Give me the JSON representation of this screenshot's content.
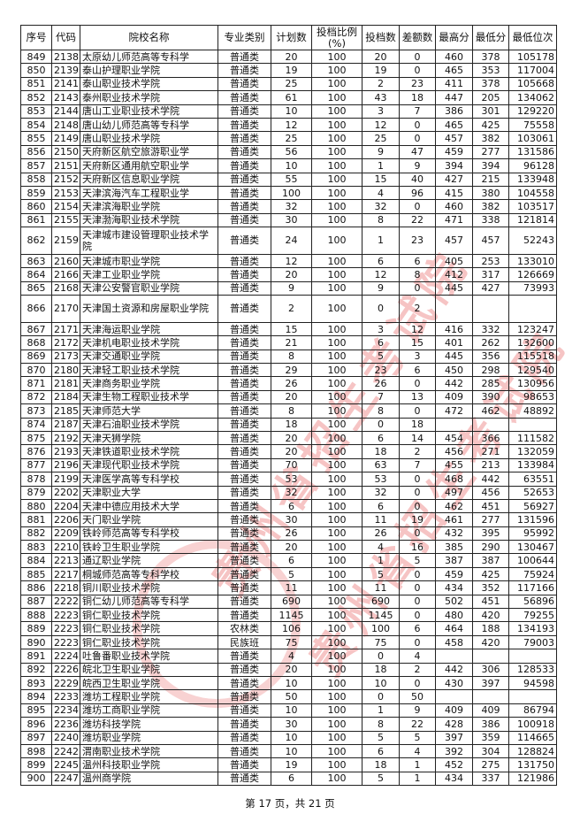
{
  "header": {
    "columns": [
      "序号",
      "代码",
      "院校名称",
      "专业类别",
      "计划数",
      "投档比例(%)",
      "投档数",
      "差额数",
      "最高分",
      "最低分",
      "最低位次"
    ]
  },
  "rows": [
    [
      "849",
      "2138",
      "太原幼儿师范高等专科学",
      "普通类",
      "20",
      "100",
      "20",
      "0",
      "460",
      "378",
      "105178"
    ],
    [
      "850",
      "2139",
      "泰山护理职业学院",
      "普通类",
      "19",
      "100",
      "19",
      "0",
      "465",
      "353",
      "117004"
    ],
    [
      "851",
      "2141",
      "泰山职业技术学院",
      "普通类",
      "25",
      "100",
      "2",
      "23",
      "411",
      "378",
      "105668"
    ],
    [
      "852",
      "2143",
      "泰州职业技术学院",
      "普通类",
      "61",
      "100",
      "43",
      "18",
      "447",
      "205",
      "134062"
    ],
    [
      "853",
      "2144",
      "唐山工业职业技术学院",
      "普通类",
      "10",
      "100",
      "3",
      "7",
      "386",
      "301",
      "129220"
    ],
    [
      "854",
      "2148",
      "唐山幼儿师范高等专科学",
      "普通类",
      "12",
      "100",
      "12",
      "0",
      "465",
      "425",
      "75558"
    ],
    [
      "855",
      "2149",
      "唐山职业技术学院",
      "普通类",
      "25",
      "100",
      "25",
      "0",
      "457",
      "382",
      "103061"
    ],
    [
      "856",
      "2150",
      "天府新区航空旅游职业学",
      "普通类",
      "56",
      "100",
      "9",
      "47",
      "459",
      "277",
      "131586"
    ],
    [
      "857",
      "2151",
      "天府新区通用航空职业学",
      "普通类",
      "10",
      "100",
      "1",
      "9",
      "394",
      "394",
      "96128"
    ],
    [
      "858",
      "2152",
      "天府新区信息职业学院",
      "普通类",
      "55",
      "100",
      "15",
      "40",
      "427",
      "215",
      "133948"
    ],
    [
      "859",
      "2153",
      "天津滨海汽车工程职业学",
      "普通类",
      "100",
      "100",
      "4",
      "96",
      "415",
      "380",
      "104558"
    ],
    [
      "860",
      "2154",
      "天津滨海职业学院",
      "普通类",
      "32",
      "100",
      "32",
      "0",
      "460",
      "382",
      "103517"
    ],
    [
      "861",
      "2155",
      "天津渤海职业技术学院",
      "普通类",
      "30",
      "100",
      "8",
      "22",
      "471",
      "338",
      "121814"
    ],
    [
      "862",
      "2159",
      "天津城市建设管理职业技术学院",
      "普通类",
      "24",
      "100",
      "1",
      "23",
      "457",
      "457",
      "52243"
    ],
    [
      "863",
      "2160",
      "天津城市职业学院",
      "普通类",
      "12",
      "100",
      "6",
      "6",
      "405",
      "253",
      "133010"
    ],
    [
      "864",
      "2166",
      "天津工业职业学院",
      "普通类",
      "20",
      "100",
      "12",
      "8",
      "412",
      "317",
      "126669"
    ],
    [
      "865",
      "2168",
      "天津公安警官职业学院",
      "普通类",
      "9",
      "100",
      "9",
      "0",
      "445",
      "427",
      "73993"
    ],
    [
      "866",
      "2170",
      "天津国土资源和房屋职业学院",
      "普通类",
      "2",
      "100",
      "0",
      "2",
      "",
      "",
      ""
    ],
    [
      "867",
      "2171",
      "天津海运职业学院",
      "普通类",
      "15",
      "100",
      "3",
      "12",
      "416",
      "332",
      "123247"
    ],
    [
      "868",
      "2172",
      "天津机电职业技术学院",
      "普通类",
      "21",
      "100",
      "6",
      "15",
      "401",
      "262",
      "132600"
    ],
    [
      "869",
      "2173",
      "天津交通职业学院",
      "普通类",
      "8",
      "100",
      "5",
      "3",
      "445",
      "356",
      "115518"
    ],
    [
      "870",
      "2180",
      "天津轻工职业技术学院",
      "普通类",
      "29",
      "100",
      "23",
      "6",
      "450",
      "298",
      "129540"
    ],
    [
      "871",
      "2181",
      "天津商务职业学院",
      "普通类",
      "26",
      "100",
      "26",
      "0",
      "442",
      "285",
      "130956"
    ],
    [
      "872",
      "2184",
      "天津生物工程职业技术学",
      "普通类",
      "20",
      "100",
      "7",
      "13",
      "409",
      "390",
      "98653"
    ],
    [
      "873",
      "2185",
      "天津师范大学",
      "普通类",
      "8",
      "100",
      "8",
      "0",
      "472",
      "462",
      "48892"
    ],
    [
      "874",
      "2187",
      "天津石油职业技术学院",
      "普通类",
      "18",
      "100",
      "0",
      "18",
      "",
      "",
      ""
    ],
    [
      "875",
      "2192",
      "天津天狮学院",
      "普通类",
      "20",
      "100",
      "6",
      "14",
      "454",
      "366",
      "111582"
    ],
    [
      "876",
      "2193",
      "天津铁道职业技术学院",
      "普通类",
      "20",
      "100",
      "18",
      "2",
      "456",
      "271",
      "132059"
    ],
    [
      "877",
      "2196",
      "天津现代职业技术学院",
      "普通类",
      "70",
      "100",
      "63",
      "7",
      "455",
      "213",
      "133984"
    ],
    [
      "878",
      "2199",
      "天津医学高等专科学校",
      "普通类",
      "53",
      "100",
      "53",
      "0",
      "468",
      "442",
      "63551"
    ],
    [
      "879",
      "2202",
      "天津职业大学",
      "普通类",
      "32",
      "100",
      "32",
      "0",
      "497",
      "456",
      "52653"
    ],
    [
      "880",
      "2204",
      "天津中德应用技术大学",
      "普通类",
      "6",
      "100",
      "6",
      "0",
      "462",
      "451",
      "56927"
    ],
    [
      "881",
      "2206",
      "天门职业学院",
      "普通类",
      "30",
      "100",
      "11",
      "19",
      "461",
      "277",
      "131596"
    ],
    [
      "882",
      "2209",
      "铁岭师范高等专科学校",
      "普通类",
      "26",
      "100",
      "26",
      "0",
      "432",
      "395",
      "95992"
    ],
    [
      "883",
      "2210",
      "铁岭卫生职业学院",
      "普通类",
      "20",
      "100",
      "4",
      "16",
      "385",
      "290",
      "130467"
    ],
    [
      "884",
      "2213",
      "通辽职业学院",
      "普通类",
      "6",
      "100",
      "1",
      "5",
      "387",
      "387",
      "100644"
    ],
    [
      "885",
      "2217",
      "桐城师范高等专科学校",
      "普通类",
      "5",
      "100",
      "5",
      "0",
      "459",
      "425",
      "75924"
    ],
    [
      "886",
      "2218",
      "铜川职业技术学院",
      "普通类",
      "11",
      "100",
      "11",
      "0",
      "434",
      "352",
      "117166"
    ],
    [
      "887",
      "2222",
      "铜仁幼儿师范高等专科学",
      "普通类",
      "690",
      "100",
      "690",
      "0",
      "502",
      "451",
      "56896"
    ],
    [
      "888",
      "2223",
      "铜仁职业技术学院",
      "普通类",
      "1145",
      "100",
      "1145",
      "0",
      "480",
      "420",
      "79255"
    ],
    [
      "889",
      "2223",
      "铜仁职业技术学院",
      "农林类",
      "106",
      "100",
      "100",
      "6",
      "464",
      "188",
      "134193"
    ],
    [
      "890",
      "2223",
      "铜仁职业技术学院",
      "民族班",
      "75",
      "100",
      "75",
      "0",
      "458",
      "420",
      "79003"
    ],
    [
      "891",
      "2224",
      "吐鲁番职业技术学院",
      "普通类",
      "4",
      "100",
      "0",
      "4",
      "",
      "",
      ""
    ],
    [
      "892",
      "2226",
      "皖北卫生职业学院",
      "普通类",
      "20",
      "100",
      "18",
      "2",
      "442",
      "306",
      "128533"
    ],
    [
      "893",
      "2229",
      "皖西卫生职业学院",
      "普通类",
      "10",
      "100",
      "10",
      "0",
      "430",
      "397",
      "94598"
    ],
    [
      "894",
      "2233",
      "潍坊工程职业学院",
      "普通类",
      "50",
      "100",
      "0",
      "50",
      "",
      "",
      ""
    ],
    [
      "895",
      "2234",
      "潍坊工商职业学院",
      "普通类",
      "10",
      "100",
      "1",
      "9",
      "409",
      "409",
      "86794"
    ],
    [
      "896",
      "2236",
      "潍坊科技学院",
      "普通类",
      "30",
      "100",
      "8",
      "22",
      "428",
      "386",
      "100918"
    ],
    [
      "897",
      "2240",
      "潍坊职业学院",
      "普通类",
      "10",
      "100",
      "5",
      "5",
      "397",
      "359",
      "114665"
    ],
    [
      "898",
      "2242",
      "渭南职业技术学院",
      "普通类",
      "10",
      "100",
      "6",
      "4",
      "392",
      "304",
      "128824"
    ],
    [
      "899",
      "2245",
      "温州科技职业学院",
      "普通类",
      "19",
      "100",
      "18",
      "1",
      "452",
      "275",
      "131750"
    ],
    [
      "900",
      "2247",
      "温州商学院",
      "普通类",
      "6",
      "100",
      "5",
      "1",
      "434",
      "337",
      "121986"
    ]
  ],
  "footer": {
    "page_text": "第 17 页，共 21 页"
  },
  "watermark": {
    "text": "贵州省招生考试院",
    "color": "#e03030"
  }
}
